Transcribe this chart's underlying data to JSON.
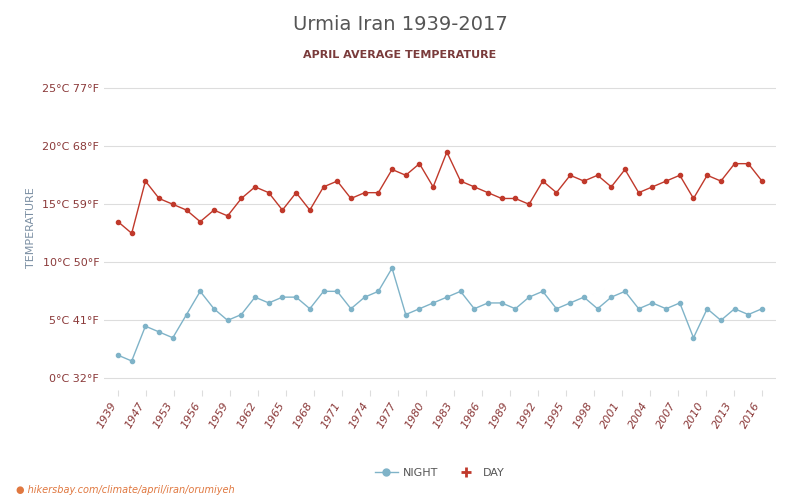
{
  "title": "Urmia Iran 1939-2017",
  "subtitle": "APRIL AVERAGE TEMPERATURE",
  "ylabel": "TEMPERATURE",
  "xlabel_url": "hikersbay.com/climate/april/iran/orumiyeh",
  "yticks_c": [
    0,
    5,
    10,
    15,
    20,
    25
  ],
  "yticks_f": [
    32,
    41,
    50,
    59,
    68,
    77
  ],
  "years": [
    1939,
    1947,
    1953,
    1956,
    1959,
    1962,
    1965,
    1968,
    1971,
    1974,
    1977,
    1980,
    1983,
    1986,
    1989,
    1992,
    1995,
    1998,
    2001,
    2004,
    2007,
    2010,
    2013,
    2016
  ],
  "day_temps": [
    13.5,
    12.5,
    17.0,
    15.5,
    15.0,
    14.5,
    13.5,
    14.5,
    14.0,
    15.5,
    16.5,
    16.0,
    14.5,
    16.0,
    14.5,
    16.5,
    17.0,
    15.5,
    16.0,
    16.0,
    18.0,
    17.5,
    18.5,
    16.5,
    19.5,
    17.0,
    16.5,
    16.0,
    15.5,
    15.5,
    15.0,
    17.0,
    16.0,
    17.5,
    17.0,
    17.5,
    16.5,
    18.0,
    16.0,
    16.5,
    17.0,
    17.5,
    15.5,
    17.5,
    17.0,
    18.5,
    18.5,
    17.0
  ],
  "night_temps": [
    2.0,
    1.5,
    4.5,
    4.0,
    3.5,
    5.5,
    7.5,
    6.0,
    5.0,
    5.5,
    7.0,
    6.5,
    7.0,
    7.0,
    6.0,
    7.5,
    7.5,
    6.0,
    7.0,
    7.5,
    9.5,
    5.5,
    6.0,
    6.5,
    7.0,
    7.5,
    6.0,
    6.5,
    6.5,
    6.0,
    7.0,
    7.5,
    6.0,
    6.5,
    7.0,
    6.0,
    7.0,
    7.5,
    6.0,
    6.5,
    6.0,
    6.5,
    3.5,
    6.0,
    5.0,
    6.0,
    5.5,
    6.0
  ],
  "day_color": "#c0392b",
  "night_color": "#7fb3c8",
  "title_color": "#555555",
  "subtitle_color": "#7a3b3b",
  "axis_label_color": "#7b8fa3",
  "tick_label_color": "#8b3a3a",
  "grid_color": "#dddddd",
  "bg_color": "#ffffff",
  "url_color": "#e07840",
  "ylim": [
    -1,
    27
  ],
  "legend_night": "NIGHT",
  "legend_day": "DAY"
}
